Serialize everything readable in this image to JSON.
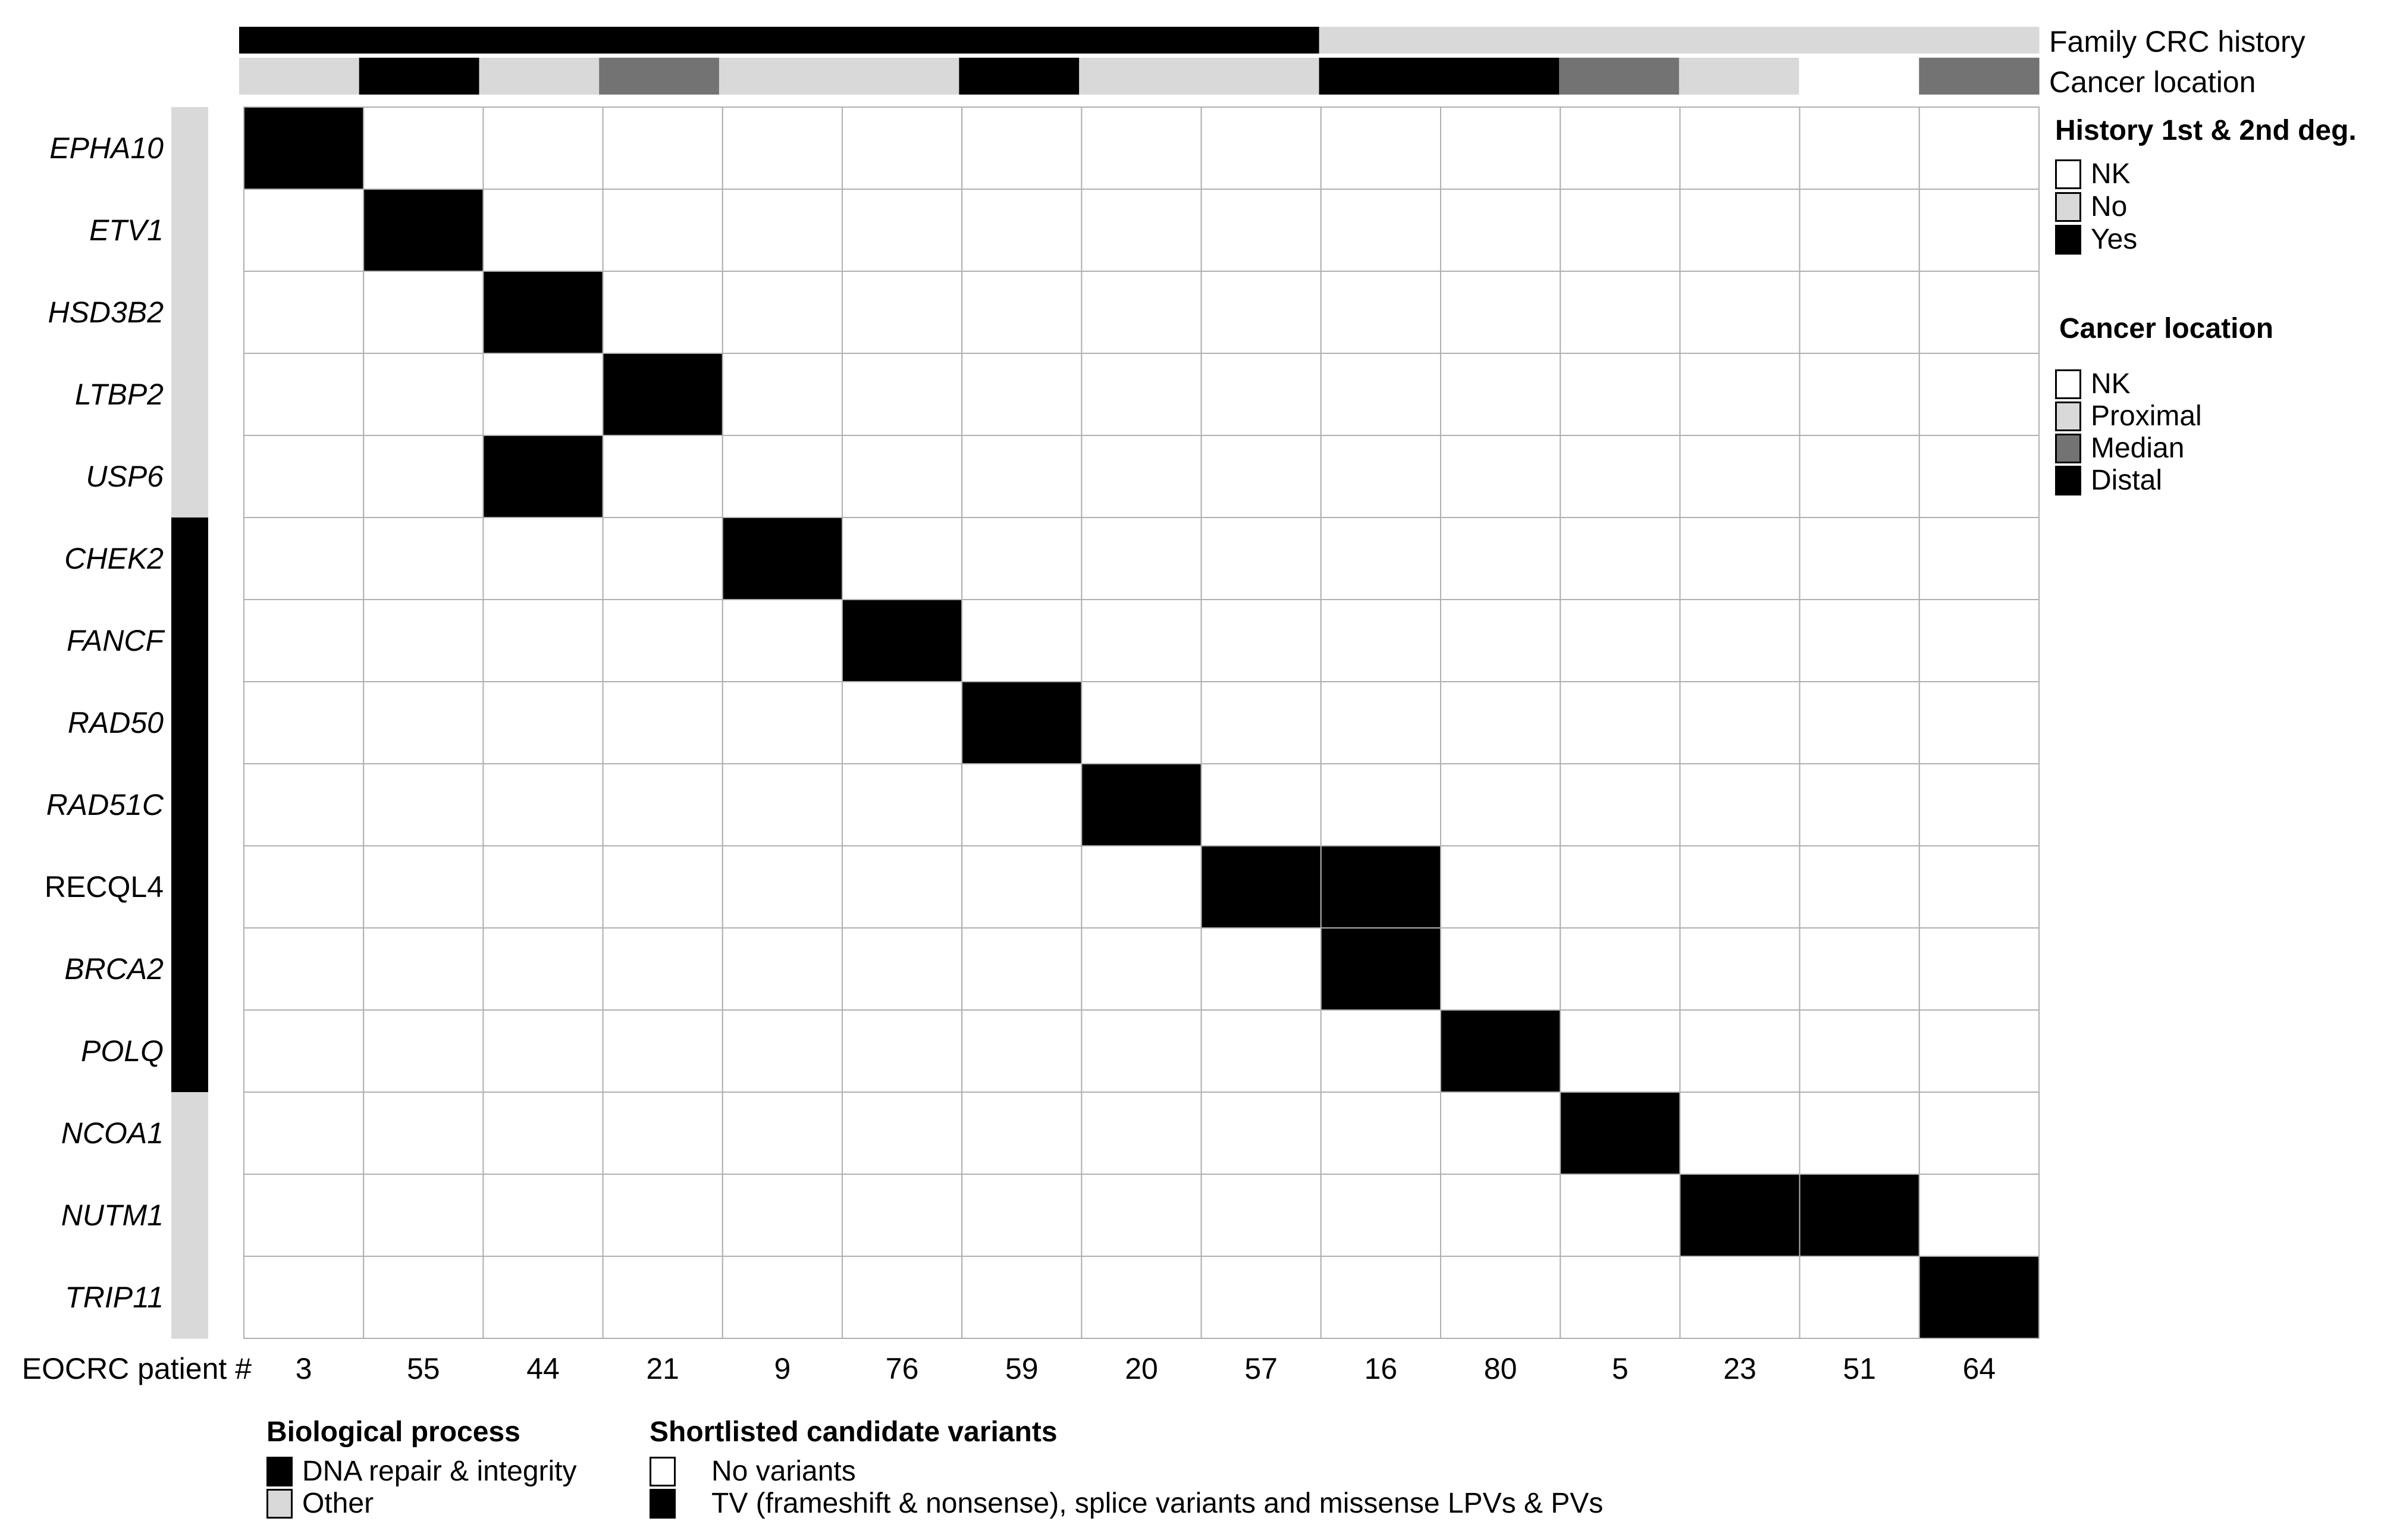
{
  "chart_data": {
    "type": "heatmap",
    "xlabel": "EOCRC patient #",
    "patients": [
      "3",
      "55",
      "44",
      "21",
      "9",
      "76",
      "59",
      "20",
      "57",
      "16",
      "80",
      "5",
      "23",
      "51",
      "64"
    ],
    "genes": [
      "EPHA10",
      "ETV1",
      "HSD3B2",
      "LTBP2",
      "USP6",
      "CHEK2",
      "FANCF",
      "RAD50",
      "RAD51C",
      "RECQL4",
      "BRCA2",
      "POLQ",
      "NCOA1",
      "NUTM1",
      "TRIP11"
    ],
    "gene_italic": [
      true,
      true,
      true,
      true,
      true,
      true,
      true,
      true,
      true,
      false,
      true,
      true,
      true,
      true,
      true
    ],
    "gene_process": [
      "Other",
      "Other",
      "Other",
      "Other",
      "Other",
      "DNA repair & integrity",
      "DNA repair & integrity",
      "DNA repair & integrity",
      "DNA repair & integrity",
      "DNA repair & integrity",
      "DNA repair & integrity",
      "DNA repair & integrity",
      "Other",
      "Other",
      "Other"
    ],
    "variants": [
      [
        1,
        0,
        0,
        0,
        0,
        0,
        0,
        0,
        0,
        0,
        0,
        0,
        0,
        0,
        0
      ],
      [
        0,
        1,
        0,
        0,
        0,
        0,
        0,
        0,
        0,
        0,
        0,
        0,
        0,
        0,
        0
      ],
      [
        0,
        0,
        1,
        0,
        0,
        0,
        0,
        0,
        0,
        0,
        0,
        0,
        0,
        0,
        0
      ],
      [
        0,
        0,
        0,
        1,
        0,
        0,
        0,
        0,
        0,
        0,
        0,
        0,
        0,
        0,
        0
      ],
      [
        0,
        0,
        1,
        0,
        0,
        0,
        0,
        0,
        0,
        0,
        0,
        0,
        0,
        0,
        0
      ],
      [
        0,
        0,
        0,
        0,
        1,
        0,
        0,
        0,
        0,
        0,
        0,
        0,
        0,
        0,
        0
      ],
      [
        0,
        0,
        0,
        0,
        0,
        1,
        0,
        0,
        0,
        0,
        0,
        0,
        0,
        0,
        0
      ],
      [
        0,
        0,
        0,
        0,
        0,
        0,
        1,
        0,
        0,
        0,
        0,
        0,
        0,
        0,
        0
      ],
      [
        0,
        0,
        0,
        0,
        0,
        0,
        0,
        1,
        0,
        0,
        0,
        0,
        0,
        0,
        0
      ],
      [
        0,
        0,
        0,
        0,
        0,
        0,
        0,
        0,
        1,
        1,
        0,
        0,
        0,
        0,
        0
      ],
      [
        0,
        0,
        0,
        0,
        0,
        0,
        0,
        0,
        0,
        1,
        0,
        0,
        0,
        0,
        0
      ],
      [
        0,
        0,
        0,
        0,
        0,
        0,
        0,
        0,
        0,
        0,
        1,
        0,
        0,
        0,
        0
      ],
      [
        0,
        0,
        0,
        0,
        0,
        0,
        0,
        0,
        0,
        0,
        0,
        1,
        0,
        0,
        0
      ],
      [
        0,
        0,
        0,
        0,
        0,
        0,
        0,
        0,
        0,
        0,
        0,
        0,
        1,
        1,
        0
      ],
      [
        0,
        0,
        0,
        0,
        0,
        0,
        0,
        0,
        0,
        0,
        0,
        0,
        0,
        0,
        1
      ]
    ],
    "family_crc_history": [
      "Yes",
      "Yes",
      "Yes",
      "Yes",
      "Yes",
      "Yes",
      "Yes",
      "Yes",
      "Yes",
      "No",
      "No",
      "No",
      "No",
      "No",
      "No"
    ],
    "cancer_location": [
      "Proximal",
      "Distal",
      "Proximal",
      "Median",
      "Proximal",
      "Proximal",
      "Distal",
      "Proximal",
      "Proximal",
      "Distal",
      "Distal",
      "Median",
      "Proximal",
      "NK",
      "Median"
    ],
    "annotation_rows": {
      "family_label": "Family CRC history",
      "location_label": "Cancer location"
    },
    "legends": {
      "history": {
        "title": "History 1st & 2nd deg.",
        "items": [
          {
            "label": "NK",
            "color": "#ffffff"
          },
          {
            "label": "No",
            "color": "#d9d9d9"
          },
          {
            "label": "Yes",
            "color": "#000000"
          }
        ]
      },
      "location": {
        "title": "Cancer location",
        "items": [
          {
            "label": "NK",
            "color": "#ffffff"
          },
          {
            "label": "Proximal",
            "color": "#d9d9d9"
          },
          {
            "label": "Median",
            "color": "#737373"
          },
          {
            "label": "Distal",
            "color": "#000000"
          }
        ]
      },
      "process": {
        "title": "Biological process",
        "items": [
          {
            "label": "DNA repair & integrity",
            "color": "#000000"
          },
          {
            "label": "Other",
            "color": "#d9d9d9"
          }
        ]
      },
      "variants": {
        "title": "Shortlisted candidate variants",
        "items": [
          {
            "label": "No variants",
            "color": "#ffffff"
          },
          {
            "label": "TV (frameshift & nonsense), splice variants and missense LPVs & PVs",
            "color": "#000000"
          }
        ]
      }
    }
  }
}
